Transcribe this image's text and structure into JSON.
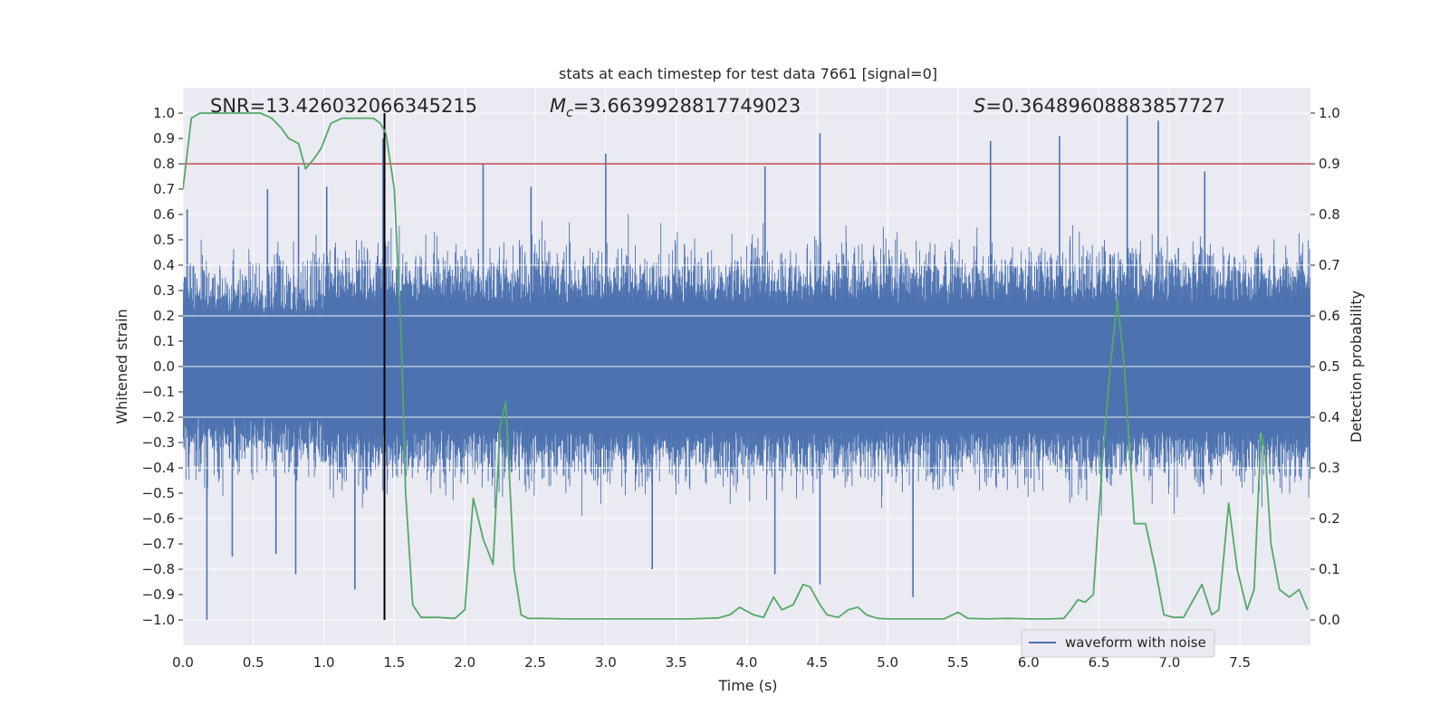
{
  "chart_data": {
    "type": "line",
    "title": "stats at each timestep for test data 7661 [signal=0]",
    "xlabel": "Time (s)",
    "ylabel_left": "Whitened strain",
    "ylabel_right": "Detection probability",
    "xlim": [
      0.0,
      8.0
    ],
    "ylim_left": [
      -1.1,
      1.1
    ],
    "ylim_right": [
      -0.05,
      1.05
    ],
    "x_ticks": [
      "0.0",
      "0.5",
      "1.0",
      "1.5",
      "2.0",
      "2.5",
      "3.0",
      "3.5",
      "4.0",
      "4.5",
      "5.0",
      "5.5",
      "6.0",
      "6.5",
      "7.0",
      "7.5"
    ],
    "y_ticks_left": [
      "1.0",
      "0.9",
      "0.8",
      "0.7",
      "0.6",
      "0.5",
      "0.4",
      "0.3",
      "0.2",
      "0.1",
      "0.0",
      "−0.1",
      "−0.2",
      "−0.3",
      "−0.4",
      "−0.5",
      "−0.6",
      "−0.7",
      "−0.8",
      "−0.9",
      "−1.0"
    ],
    "y_ticks_right": [
      "1.0",
      "0.9",
      "0.8",
      "0.7",
      "0.6",
      "0.5",
      "0.4",
      "0.3",
      "0.2",
      "0.1",
      "0.0"
    ],
    "grid": true,
    "legend_position": "lower-right",
    "annotations": {
      "snr": "SNR=13.426032066345215",
      "mc_symbol": "M",
      "mc_subscript": "c",
      "mc_value": "=3.6639928817749023",
      "s_symbol": "S",
      "s_value": "=0.36489608883857727"
    },
    "threshold": {
      "value": 0.9,
      "axis": "right",
      "color": "#c44e52"
    },
    "marker_line": {
      "x": 1.43,
      "y_range": [
        -1.0,
        1.0
      ],
      "color": "#000000"
    },
    "series": [
      {
        "name": "waveform with noise",
        "axis": "left",
        "color": "#4c72b0",
        "kind": "noise-envelope",
        "envelope": [
          0.2,
          0.25,
          0.25,
          0.25,
          0.25,
          0.25,
          0.25,
          0.25
        ],
        "spikes": [
          [
            0.03,
            0.62
          ],
          [
            0.17,
            -1.0
          ],
          [
            0.35,
            -0.75
          ],
          [
            0.6,
            0.7
          ],
          [
            0.66,
            -0.74
          ],
          [
            0.8,
            -0.82
          ],
          [
            0.82,
            0.79
          ],
          [
            1.02,
            0.71
          ],
          [
            1.22,
            -0.88
          ],
          [
            1.42,
            0.9
          ],
          [
            2.13,
            0.8
          ],
          [
            2.47,
            0.71
          ],
          [
            3.0,
            0.84
          ],
          [
            3.33,
            -0.8
          ],
          [
            4.13,
            0.79
          ],
          [
            4.2,
            -0.82
          ],
          [
            4.52,
            0.92
          ],
          [
            4.52,
            -0.86
          ],
          [
            5.18,
            -0.91
          ],
          [
            5.73,
            0.89
          ],
          [
            6.22,
            0.91
          ],
          [
            6.7,
            0.99
          ],
          [
            6.92,
            0.97
          ],
          [
            7.25,
            0.77
          ]
        ]
      },
      {
        "name": "detection probability",
        "axis": "right",
        "color": "#55a868",
        "x": [
          0.0,
          0.06,
          0.12,
          0.25,
          0.4,
          0.55,
          0.63,
          0.7,
          0.75,
          0.82,
          0.87,
          0.93,
          0.98,
          1.05,
          1.13,
          1.2,
          1.35,
          1.4,
          1.44,
          1.5,
          1.55,
          1.58,
          1.63,
          1.69,
          1.8,
          1.93,
          2.0,
          2.06,
          2.13,
          2.2,
          2.25,
          2.29,
          2.35,
          2.4,
          2.45,
          2.55,
          2.7,
          2.85,
          3.0,
          3.2,
          3.4,
          3.6,
          3.8,
          3.88,
          3.95,
          4.05,
          4.12,
          4.19,
          4.25,
          4.33,
          4.4,
          4.45,
          4.52,
          4.57,
          4.65,
          4.72,
          4.79,
          4.85,
          4.93,
          5.0,
          5.2,
          5.4,
          5.5,
          5.57,
          5.7,
          5.85,
          6.0,
          6.15,
          6.25,
          6.3,
          6.35,
          6.4,
          6.46,
          6.52,
          6.58,
          6.63,
          6.68,
          6.75,
          6.83,
          6.9,
          6.96,
          7.03,
          7.1,
          7.17,
          7.23,
          7.3,
          7.35,
          7.42,
          7.48,
          7.55,
          7.6,
          7.65,
          7.68,
          7.72,
          7.78,
          7.85,
          7.92,
          7.98
        ],
        "values": [
          0.85,
          0.99,
          1.0,
          1.0,
          1.0,
          1.0,
          0.99,
          0.97,
          0.95,
          0.94,
          0.89,
          0.91,
          0.93,
          0.98,
          0.99,
          0.99,
          0.99,
          0.98,
          0.96,
          0.85,
          0.55,
          0.25,
          0.03,
          0.005,
          0.005,
          0.003,
          0.02,
          0.24,
          0.16,
          0.11,
          0.38,
          0.43,
          0.1,
          0.01,
          0.003,
          0.003,
          0.002,
          0.002,
          0.002,
          0.002,
          0.002,
          0.002,
          0.004,
          0.01,
          0.025,
          0.01,
          0.005,
          0.045,
          0.02,
          0.03,
          0.07,
          0.065,
          0.03,
          0.01,
          0.005,
          0.02,
          0.025,
          0.01,
          0.003,
          0.002,
          0.002,
          0.002,
          0.015,
          0.003,
          0.002,
          0.003,
          0.002,
          0.002,
          0.003,
          0.02,
          0.04,
          0.035,
          0.05,
          0.3,
          0.5,
          0.63,
          0.5,
          0.19,
          0.19,
          0.1,
          0.01,
          0.005,
          0.005,
          0.04,
          0.07,
          0.01,
          0.02,
          0.23,
          0.1,
          0.02,
          0.06,
          0.37,
          0.33,
          0.15,
          0.06,
          0.045,
          0.06,
          0.02
        ]
      }
    ]
  }
}
